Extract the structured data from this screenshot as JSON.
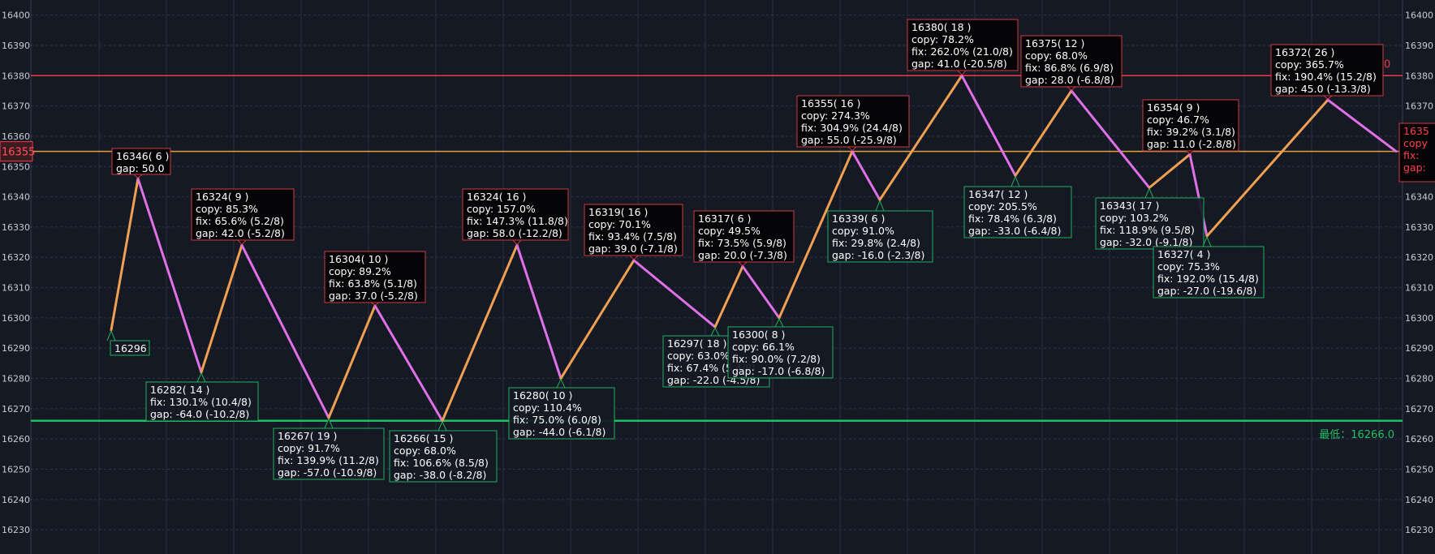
{
  "chart_data": {
    "type": "line",
    "y_axis": {
      "ylim": [
        16222,
        16405
      ],
      "ticks": [
        16230,
        16240,
        16250,
        16260,
        16270,
        16280,
        16290,
        16300,
        16310,
        16320,
        16330,
        16340,
        16350,
        16360,
        16370,
        16380,
        16390,
        16400
      ],
      "sides": "left-and-right",
      "grid": true
    },
    "x_axis": {
      "grid": true,
      "labels": []
    },
    "zigzag": {
      "up_color": "#f0a050",
      "down_color": "#e070e8",
      "points": [
        16296,
        16346,
        16282,
        16324,
        16267,
        16304,
        16266,
        16324,
        16280,
        16319,
        16297,
        16317,
        16300,
        16355,
        16339,
        16380,
        16347,
        16375,
        16343,
        16354,
        16327,
        16372,
        16355
      ]
    },
    "reference_lines": [
      {
        "value": 16380,
        "color": "#f03a4a",
        "label": "",
        "clipped_label": "0"
      },
      {
        "value": 16355,
        "color": "#e0a040",
        "label": "16355"
      },
      {
        "value": 16266,
        "color": "#20c060",
        "label": "最低：16266.0"
      }
    ],
    "annotations": [
      {
        "pivot": 0,
        "kind": "low",
        "lines": [
          "16296"
        ]
      },
      {
        "pivot": 1,
        "kind": "high",
        "lines": [
          "16346( 6 )",
          "gap:  50.0"
        ]
      },
      {
        "pivot": 2,
        "kind": "low",
        "lines": [
          "16282( 14 )",
          "fix:  130.1% (10.4/8)",
          "gap:  -64.0 (-10.2/8)"
        ]
      },
      {
        "pivot": 3,
        "kind": "high",
        "lines": [
          "16324( 9 )",
          "copy: 85.3%",
          "fix:  65.6% (5.2/8)",
          "gap:  42.0 (-5.2/8)"
        ]
      },
      {
        "pivot": 4,
        "kind": "low",
        "lines": [
          "16267( 19 )",
          "copy: 91.7%",
          "fix:  139.9% (11.2/8)",
          "gap:  -57.0 (-10.9/8)"
        ]
      },
      {
        "pivot": 5,
        "kind": "high",
        "lines": [
          "16304( 10 )",
          "copy: 89.2%",
          "fix:  63.8% (5.1/8)",
          "gap:  37.0 (-5.2/8)"
        ]
      },
      {
        "pivot": 6,
        "kind": "low",
        "lines": [
          "16266( 15 )",
          "copy: 68.0%",
          "fix:  106.6% (8.5/8)",
          "gap:  -38.0 (-8.2/8)"
        ]
      },
      {
        "pivot": 7,
        "kind": "high",
        "lines": [
          "16324( 16 )",
          "copy: 157.0%",
          "fix:  147.3% (11.8/8)",
          "gap:  58.0 (-12.2/8)"
        ]
      },
      {
        "pivot": 8,
        "kind": "low",
        "lines": [
          "16280( 10 )",
          "copy: 110.4%",
          "fix:  75.0% (6.0/8)",
          "gap:  -44.0 (-6.1/8)"
        ]
      },
      {
        "pivot": 9,
        "kind": "high",
        "lines": [
          "16319( 16 )",
          "copy: 70.1%",
          "fix:  93.4% (7.5/8)",
          "gap:  39.0 (-7.1/8)"
        ]
      },
      {
        "pivot": 10,
        "kind": "low",
        "lines": [
          "16297( 18 )",
          "copy: 63.0%",
          "fix:  67.4% (5.4/8)",
          "gap:  -22.0 (-4.5/8)"
        ]
      },
      {
        "pivot": 11,
        "kind": "high",
        "lines": [
          "16317( 6 )",
          "copy: 49.5%",
          "fix:  73.5% (5.9/8)",
          "gap:  20.0 (-7.3/8)"
        ]
      },
      {
        "pivot": 12,
        "kind": "low",
        "lines": [
          "16300( 8 )",
          "copy: 66.1%",
          "fix:  90.0% (7.2/8)",
          "gap:  -17.0 (-6.8/8)"
        ]
      },
      {
        "pivot": 13,
        "kind": "high",
        "lines": [
          "16355( 16 )",
          "copy: 274.3%",
          "fix:  304.9% (24.4/8)",
          "gap:  55.0 (-25.9/8)"
        ]
      },
      {
        "pivot": 14,
        "kind": "low",
        "lines": [
          "16339( 6 )",
          "copy: 91.0%",
          "fix:  29.8% (2.4/8)",
          "gap:  -16.0 (-2.3/8)"
        ]
      },
      {
        "pivot": 15,
        "kind": "high",
        "lines": [
          "16380( 18 )",
          "copy: 78.2%",
          "fix:  262.0% (21.0/8)",
          "gap:  41.0 (-20.5/8)"
        ]
      },
      {
        "pivot": 16,
        "kind": "low",
        "lines": [
          "16347( 12 )",
          "copy: 205.5%",
          "fix:  78.4% (6.3/8)",
          "gap:  -33.0 (-6.4/8)"
        ]
      },
      {
        "pivot": 17,
        "kind": "high",
        "lines": [
          "16375( 12 )",
          "copy: 68.0%",
          "fix:  86.8% (6.9/8)",
          "gap:  28.0 (-6.8/8)"
        ]
      },
      {
        "pivot": 18,
        "kind": "low",
        "lines": [
          "16343( 17 )",
          "copy: 103.2%",
          "fix:  118.9% (9.5/8)",
          "gap:  -32.0 (-9.1/8)"
        ]
      },
      {
        "pivot": 19,
        "kind": "high",
        "lines": [
          "16354( 9 )",
          "copy: 46.7%",
          "fix:  39.2% (3.1/8)",
          "gap:  11.0 (-2.8/8)"
        ]
      },
      {
        "pivot": 20,
        "kind": "low",
        "lines": [
          "16327( 4 )",
          "copy: 75.3%",
          "fix:  192.0% (15.4/8)",
          "gap:  -27.0 (-19.6/8)"
        ]
      },
      {
        "pivot": 21,
        "kind": "high",
        "lines": [
          "16372( 26 )",
          "copy: 365.7%",
          "fix:  190.4% (15.2/8)",
          "gap:  45.0 (-13.3/8)"
        ]
      },
      {
        "pivot": 22,
        "kind": "clipped",
        "lines": [
          "1635",
          "copy",
          "fix:",
          "gap:"
        ]
      }
    ]
  }
}
